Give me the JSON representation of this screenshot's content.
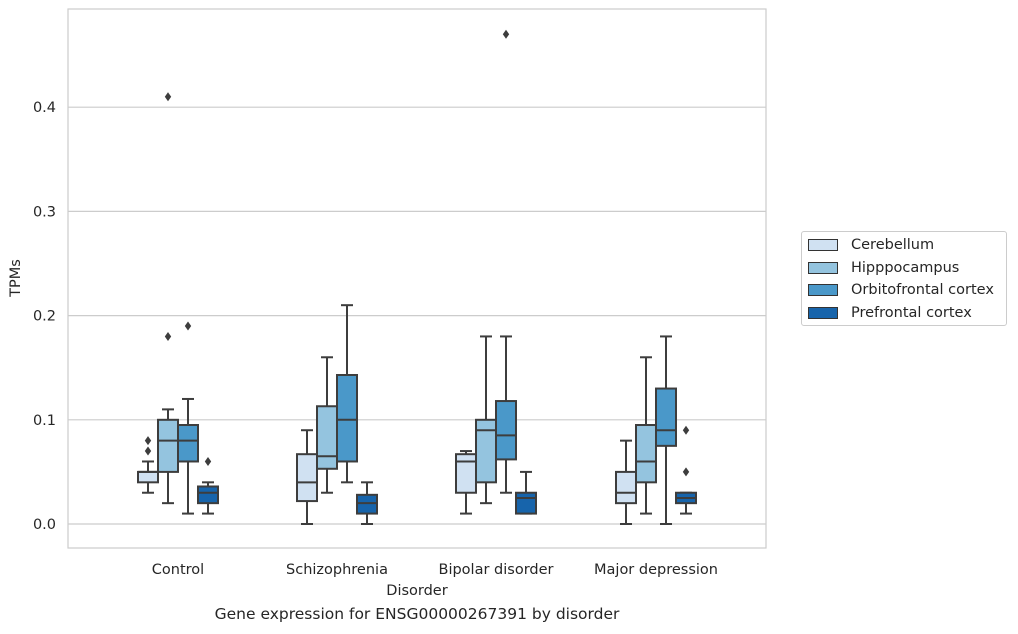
{
  "chart_data": {
    "type": "box",
    "caption": "Gene expression for ENSG00000267391 by disorder",
    "xlabel": "Disorder",
    "ylabel": "TPMs",
    "ylim": [
      -0.023,
      0.495
    ],
    "yticks": [
      0.0,
      0.1,
      0.2,
      0.3,
      0.4
    ],
    "ytick_labels": [
      "0.0",
      "0.1",
      "0.2",
      "0.3",
      "0.4"
    ],
    "grid": "horizontal",
    "legend_position": "right",
    "categories": [
      "Control",
      "Schizophrenia",
      "Bipolar disorder",
      "Major depression"
    ],
    "series": [
      {
        "name": "Cerebellum",
        "color": "#d0e1f2",
        "boxes": [
          {
            "whisker_low": 0.03,
            "q1": 0.04,
            "median": 0.05,
            "q3": 0.05,
            "whisker_high": 0.06,
            "outliers": [
              0.07,
              0.08
            ]
          },
          {
            "whisker_low": 0.0,
            "q1": 0.022,
            "median": 0.04,
            "q3": 0.067,
            "whisker_high": 0.09,
            "outliers": []
          },
          {
            "whisker_low": 0.01,
            "q1": 0.03,
            "median": 0.06,
            "q3": 0.067,
            "whisker_high": 0.07,
            "outliers": []
          },
          {
            "whisker_low": 0.0,
            "q1": 0.02,
            "median": 0.03,
            "q3": 0.05,
            "whisker_high": 0.08,
            "outliers": []
          }
        ]
      },
      {
        "name": "Hipppocampus",
        "color": "#94c4df",
        "boxes": [
          {
            "whisker_low": 0.02,
            "q1": 0.05,
            "median": 0.08,
            "q3": 0.1,
            "whisker_high": 0.11,
            "outliers": [
              0.18,
              0.41
            ]
          },
          {
            "whisker_low": 0.03,
            "q1": 0.053,
            "median": 0.065,
            "q3": 0.113,
            "whisker_high": 0.16,
            "outliers": []
          },
          {
            "whisker_low": 0.02,
            "q1": 0.04,
            "median": 0.09,
            "q3": 0.1,
            "whisker_high": 0.18,
            "outliers": []
          },
          {
            "whisker_low": 0.01,
            "q1": 0.04,
            "median": 0.06,
            "q3": 0.095,
            "whisker_high": 0.16,
            "outliers": []
          }
        ]
      },
      {
        "name": "Orbitofrontal cortex",
        "color": "#4a98c9",
        "boxes": [
          {
            "whisker_low": 0.01,
            "q1": 0.06,
            "median": 0.08,
            "q3": 0.095,
            "whisker_high": 0.12,
            "outliers": [
              0.19
            ]
          },
          {
            "whisker_low": 0.04,
            "q1": 0.06,
            "median": 0.1,
            "q3": 0.143,
            "whisker_high": 0.21,
            "outliers": []
          },
          {
            "whisker_low": 0.03,
            "q1": 0.062,
            "median": 0.085,
            "q3": 0.118,
            "whisker_high": 0.18,
            "outliers": [
              0.47
            ]
          },
          {
            "whisker_low": 0.0,
            "q1": 0.075,
            "median": 0.09,
            "q3": 0.13,
            "whisker_high": 0.18,
            "outliers": []
          }
        ]
      },
      {
        "name": "Prefrontal cortex",
        "color": "#1764ab",
        "boxes": [
          {
            "whisker_low": 0.01,
            "q1": 0.02,
            "median": 0.03,
            "q3": 0.036,
            "whisker_high": 0.04,
            "outliers": [
              0.06
            ]
          },
          {
            "whisker_low": 0.0,
            "q1": 0.01,
            "median": 0.02,
            "q3": 0.028,
            "whisker_high": 0.04,
            "outliers": []
          },
          {
            "whisker_low": 0.01,
            "q1": 0.01,
            "median": 0.025,
            "q3": 0.03,
            "whisker_high": 0.05,
            "outliers": []
          },
          {
            "whisker_low": 0.01,
            "q1": 0.02,
            "median": 0.025,
            "q3": 0.03,
            "whisker_high": 0.03,
            "outliers": [
              0.05,
              0.09
            ]
          }
        ]
      }
    ]
  }
}
